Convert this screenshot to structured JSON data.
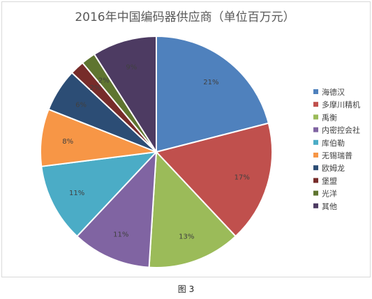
{
  "chart_data": {
    "type": "pie",
    "title": "2016年中国编码器供应商（单位百万元）",
    "categories": [
      "海德汉",
      "多摩川精机",
      "禹衡",
      "内密控会社",
      "库伯勒",
      "无锡瑞普",
      "欧姆龙",
      "堡盟",
      "光洋",
      "其他"
    ],
    "values": [
      21,
      17,
      13,
      11,
      11,
      8,
      6,
      2,
      2,
      9
    ],
    "data_labels": [
      "21%",
      "17%",
      "13%",
      "11%",
      "11%",
      "8%",
      "6%",
      "2%",
      "2%",
      "9%"
    ],
    "colors": [
      "#4f81bd",
      "#c0504d",
      "#9bbb59",
      "#8064a2",
      "#4bacc6",
      "#f79646",
      "#2c4d75",
      "#772c2a",
      "#5f7530",
      "#4d3b62"
    ],
    "legend_position": "right"
  },
  "caption": "图 3"
}
